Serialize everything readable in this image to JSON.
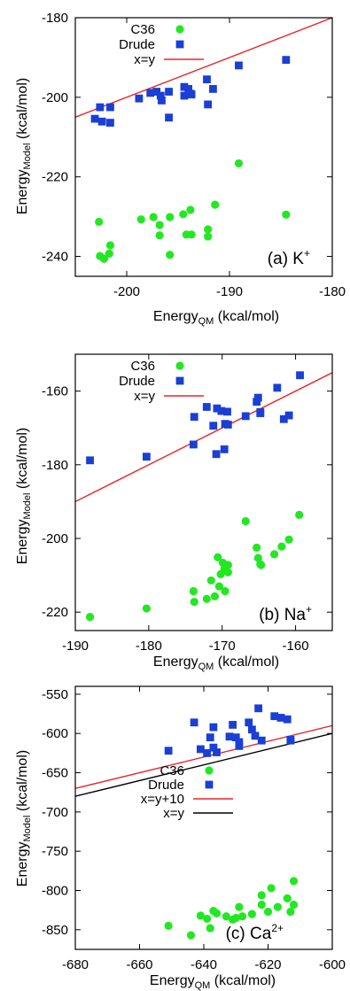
{
  "figure": {
    "colors": {
      "c36": "#22e822",
      "drude": "#1a3fd6",
      "fit": "#e8262b",
      "identity": "#000000"
    }
  },
  "chart_data": [
    {
      "type": "scatter",
      "panel_label": {
        "main": "(a) K",
        "sup": "+"
      },
      "xlabel": {
        "main": "Energy",
        "sub": "QM",
        "rest": " (kcal/mol)"
      },
      "ylabel": {
        "main": "Energy",
        "sub": "Model",
        "rest": " (kcal/mol)"
      },
      "xlim": [
        -205,
        -180
      ],
      "ylim": [
        -245,
        -180
      ],
      "xticks": [
        -200,
        -190,
        -180
      ],
      "yticks": [
        -240,
        -220,
        -200,
        -180
      ],
      "legend_position": "top-left",
      "series": [
        {
          "name": "C36",
          "marker": "circle",
          "color": "#22e822",
          "x": [
            -202.7,
            -201.6,
            -201.7,
            -202.2,
            -202.6,
            -198.6,
            -197.4,
            -196.8,
            -196.8,
            -195.8,
            -195.8,
            -194.5,
            -194.2,
            -193.8,
            -193.7,
            -192.1,
            -192.1,
            -191.4,
            -189.1,
            -184.5
          ],
          "y": [
            -231.3,
            -237.2,
            -239.3,
            -240.6,
            -239.9,
            -230.7,
            -230.1,
            -232.1,
            -234.7,
            -230.1,
            -239.6,
            -229.4,
            -234.5,
            -228.3,
            -234.5,
            -233.2,
            -235.0,
            -227.0,
            -216.6,
            -229.5
          ]
        },
        {
          "name": "Drude",
          "marker": "square",
          "color": "#1a3fd6",
          "x": [
            -203.1,
            -202.6,
            -202.4,
            -201.6,
            -201.6,
            -198.8,
            -197.7,
            -197.1,
            -196.7,
            -196.6,
            -195.9,
            -195.9,
            -194.4,
            -194.4,
            -194.0,
            -193.8,
            -193.7,
            -192.2,
            -192.1,
            -191.6,
            -189.1,
            -184.5
          ],
          "y": [
            -205.4,
            -202.5,
            -206.1,
            -202.5,
            -206.4,
            -200.3,
            -198.9,
            -198.6,
            -199.6,
            -200.8,
            -198.6,
            -205.1,
            -197.4,
            -199.6,
            -197.9,
            -199.1,
            -199.3,
            -195.5,
            -201.8,
            -197.9,
            -192.0,
            -190.6
          ]
        },
        {
          "name": "x=y",
          "type": "line",
          "color": "#e8262b",
          "x": [
            -205,
            -180
          ],
          "y": [
            -205,
            -180
          ]
        }
      ]
    },
    {
      "type": "scatter",
      "panel_label": {
        "main": "(b) Na",
        "sup": "+"
      },
      "xlabel": {
        "main": "Energy",
        "sub": "QM",
        "rest": " (kcal/mol)"
      },
      "ylabel": {
        "main": "Energy",
        "sub": "Model",
        "rest": " (kcal/mol)"
      },
      "xlim": [
        -190,
        -155
      ],
      "ylim": [
        -225,
        -150
      ],
      "xticks": [
        -190,
        -180,
        -170,
        -160
      ],
      "yticks": [
        -220,
        -200,
        -180,
        -160
      ],
      "legend_position": "top-left",
      "series": [
        {
          "name": "C36",
          "marker": "circle",
          "color": "#22e822",
          "x": [
            -188.0,
            -180.3,
            -173.9,
            -173.8,
            -172.1,
            -171.5,
            -171.0,
            -170.6,
            -170.4,
            -170.2,
            -169.9,
            -169.7,
            -169.6,
            -169.2,
            -169.2,
            -166.8,
            -165.3,
            -165.1,
            -164.8,
            -164.7,
            -162.9,
            -161.9,
            -160.9,
            -159.5
          ],
          "y": [
            -221.3,
            -219.0,
            -214.3,
            -217.2,
            -216.4,
            -211.4,
            -215.7,
            -205.1,
            -213.0,
            -209.7,
            -206.6,
            -208.2,
            -214.3,
            -207.2,
            -209.2,
            -195.3,
            -202.5,
            -205.3,
            -207.0,
            -207.2,
            -204.3,
            -202.2,
            -200.3,
            -193.6
          ]
        },
        {
          "name": "Drude",
          "marker": "square",
          "color": "#1a3fd6",
          "x": [
            -188.0,
            -180.3,
            -173.9,
            -173.8,
            -172.1,
            -171.2,
            -170.8,
            -170.7,
            -170.1,
            -169.7,
            -169.6,
            -169.3,
            -169.2,
            -166.8,
            -165.3,
            -165.1,
            -164.8,
            -164.8,
            -162.5,
            -161.6,
            -160.9,
            -159.4
          ],
          "y": [
            -178.8,
            -177.8,
            -174.5,
            -167.0,
            -164.3,
            -169.4,
            -177.1,
            -164.7,
            -165.4,
            -175.8,
            -168.9,
            -165.6,
            -169.1,
            -166.8,
            -162.9,
            -161.8,
            -166.0,
            -165.7,
            -159.1,
            -167.6,
            -166.6,
            -155.7
          ]
        },
        {
          "name": "x=y",
          "type": "line",
          "color": "#e8262b",
          "x": [
            -190,
            -155
          ],
          "y": [
            -190,
            -155
          ]
        }
      ]
    },
    {
      "type": "scatter",
      "panel_label": {
        "main": "(c) Ca",
        "sup": "2+"
      },
      "xlabel": {
        "main": "Energy",
        "sub": "QM",
        "rest": " (kcal/mol)"
      },
      "ylabel": {
        "main": "Energy",
        "sub": "Model",
        "rest": " (kcal/mol)"
      },
      "xlim": [
        -680,
        -600
      ],
      "ylim": [
        -875,
        -540
      ],
      "xticks": [
        -680,
        -660,
        -640,
        -620,
        -600
      ],
      "yticks": [
        -850,
        -800,
        -750,
        -700,
        -650,
        -600,
        -550
      ],
      "legend_position": "center-left",
      "series": [
        {
          "name": "C36",
          "marker": "circle",
          "color": "#22e822",
          "x": [
            -651,
            -644,
            -641,
            -639,
            -638,
            -637,
            -636,
            -633,
            -631,
            -630,
            -629,
            -628,
            -625,
            -622,
            -622,
            -620,
            -619,
            -617,
            -614,
            -613,
            -612,
            -612
          ],
          "y": [
            -845,
            -857,
            -832,
            -836,
            -848,
            -826,
            -829,
            -833,
            -837,
            -835,
            -821,
            -833,
            -830,
            -806,
            -818,
            -827,
            -797,
            -821,
            -810,
            -827,
            -788,
            -818
          ]
        },
        {
          "name": "Drude",
          "marker": "square",
          "color": "#1a3fd6",
          "x": [
            -651,
            -643,
            -641,
            -639,
            -638,
            -637,
            -637,
            -636,
            -632,
            -631,
            -630,
            -629,
            -629,
            -626,
            -625,
            -624,
            -623,
            -622,
            -618,
            -616,
            -614,
            -613,
            -613
          ],
          "y": [
            -622,
            -586,
            -620,
            -625,
            -605,
            -592,
            -618,
            -624,
            -604,
            -589,
            -605,
            -611,
            -616,
            -586,
            -595,
            -603,
            -568,
            -609,
            -578,
            -580,
            -582,
            -608,
            -609
          ]
        },
        {
          "name": "x=y+10",
          "type": "line",
          "color": "#e8262b",
          "x": [
            -680,
            -600
          ],
          "y": [
            -670,
            -590
          ]
        },
        {
          "name": "x=y",
          "type": "line",
          "color": "#000000",
          "x": [
            -680,
            -600
          ],
          "y": [
            -680,
            -600
          ]
        }
      ]
    }
  ]
}
